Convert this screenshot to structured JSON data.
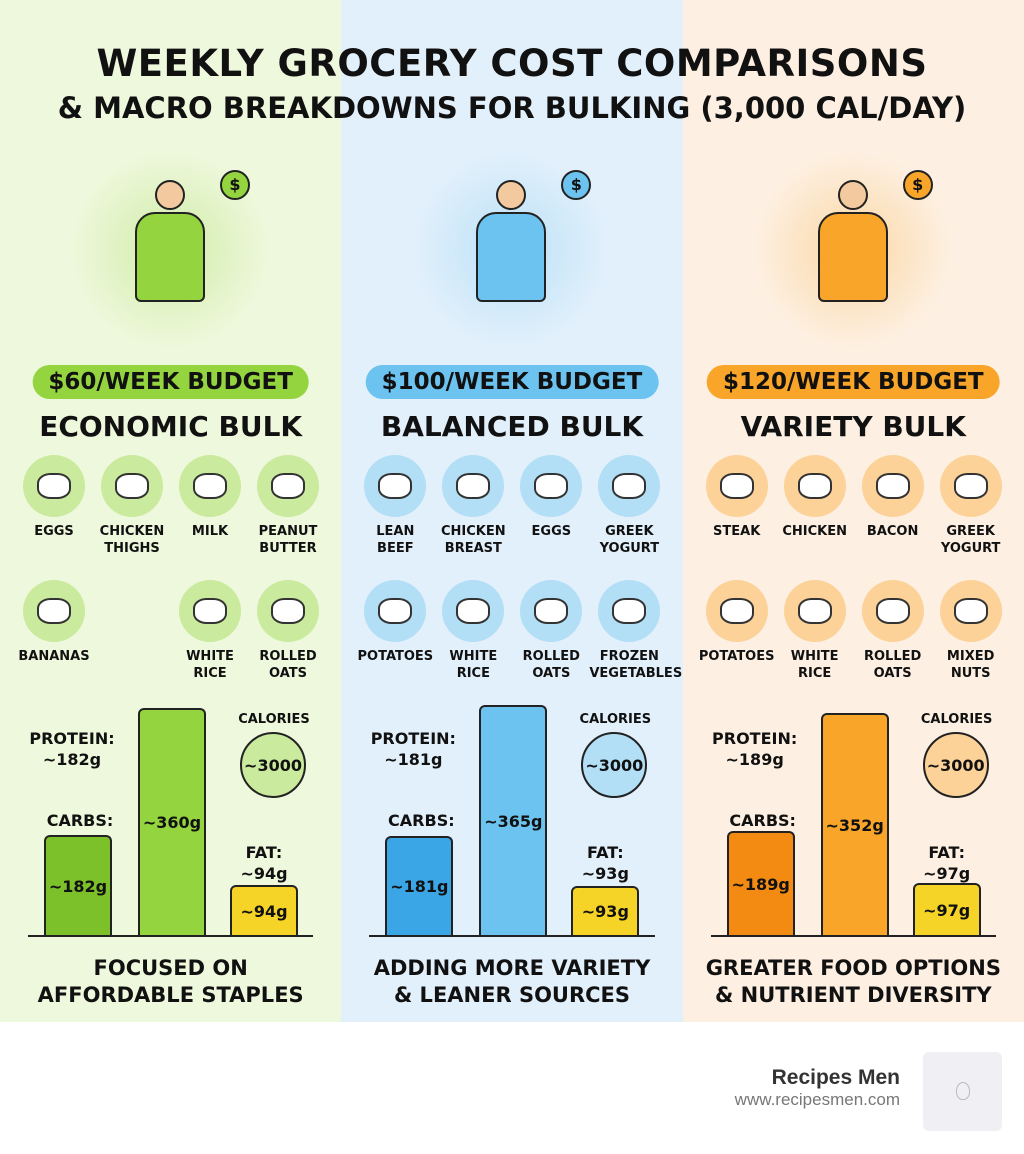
{
  "header": {
    "title": "WEEKLY GROCERY COST COMPARISONS",
    "subtitle": "& MACRO BREAKDOWNS FOR BULKING (3,000 CAL/DAY)"
  },
  "columns": [
    {
      "budget": "$60/WEEK BUDGET",
      "title": "ECONOMIC BULK",
      "bg": "#eef8dc",
      "accent": "#93d43f",
      "accent_dark": "#7cc02a",
      "foods_row1": [
        "EGGS",
        "CHICKEN\nTHIGHS",
        "MILK",
        "PEANUT\nBUTTER"
      ],
      "foods_row2": [
        "BANANAS",
        "",
        "WHITE\nRICE",
        "ROLLED\nOATS"
      ],
      "protein_label": "PROTEIN:\n~182g",
      "carbs_label": "CARBS:",
      "fat_label": "FAT:\n~94g",
      "protein_bar": "~182g",
      "carbs_bar": "~360g",
      "fat_bar": "~94g",
      "protein": 182,
      "carbs": 360,
      "fat": 94,
      "calories_label": "CALORIES",
      "calories": "~3000",
      "tagline": "FOCUSED ON\nAFFORDABLE STAPLES"
    },
    {
      "budget": "$100/WEEK BUDGET",
      "title": "BALANCED BULK",
      "bg": "#e2f0fb",
      "accent": "#6cc3f0",
      "accent_dark": "#3aa6e6",
      "foods_row1": [
        "LEAN\nBEEF",
        "CHICKEN\nBREAST",
        "EGGS",
        "GREEK\nYOGURT"
      ],
      "foods_row2": [
        "POTATOES",
        "WHITE\nRICE",
        "ROLLED\nOATS",
        "FROZEN\nVEGETABLES"
      ],
      "protein_label": "PROTEIN:\n~181g",
      "carbs_label": "CARBS:",
      "fat_label": "FAT:\n~93g",
      "protein_bar": "~181g",
      "carbs_bar": "~365g",
      "fat_bar": "~93g",
      "protein": 181,
      "carbs": 365,
      "fat": 93,
      "calories_label": "CALORIES",
      "calories": "~3000",
      "tagline": "ADDING MORE VARIETY\n& LEANER SOURCES"
    },
    {
      "budget": "$120/WEEK BUDGET",
      "title": "VARIETY BULK",
      "bg": "#fdf0e2",
      "accent": "#f9a52a",
      "accent_dark": "#f38a12",
      "foods_row1": [
        "STEAK",
        "CHICKEN",
        "BACON",
        "GREEK\nYOGURT"
      ],
      "foods_row2": [
        "POTATOES",
        "WHITE\nRICE",
        "ROLLED\nOATS",
        "MIXED\nNUTS"
      ],
      "protein_label": "PROTEIN:\n~189g",
      "carbs_label": "CARBS:",
      "fat_label": "FAT:\n~97g",
      "protein_bar": "~189g",
      "carbs_bar": "~352g",
      "fat_bar": "~97g",
      "protein": 189,
      "carbs": 352,
      "fat": 97,
      "calories_label": "CALORIES",
      "calories": "~3000",
      "tagline": "GREATER FOOD OPTIONS\n& NUTRIENT DIVERSITY"
    }
  ],
  "fat_color": "#f5d327",
  "brand": {
    "name": "Recipes Men",
    "url": "www.recipesmen.com"
  }
}
